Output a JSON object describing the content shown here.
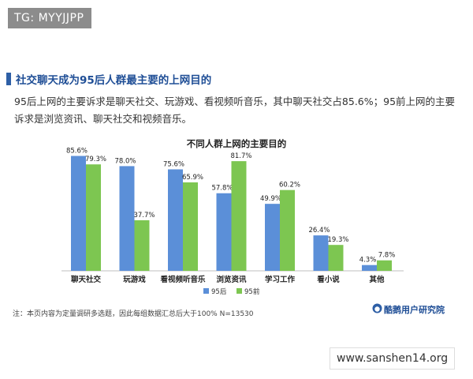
{
  "watermark_tag": "TG: MYYJJPP",
  "site_tag": "www.sanshen14.org",
  "headline": "社交聊天成为95后人群最主要的上网目的",
  "description": "95后上网的主要诉求是聊天社交、玩游戏、看视频听音乐，其中聊天社交占85.6%；95前上网的主要诉求是浏览资讯、聊天社交和视频音乐。",
  "note": "注：本页内容为定量调研多选题，因此每组数据汇总后大于100%  N=13530",
  "brand": "酷鹅用户研究院",
  "colors": {
    "series_95hou": "#5b8fd8",
    "series_95qian": "#7dc651",
    "title": "#1f4e96"
  },
  "chart_data": {
    "type": "bar",
    "title": "不同人群上网的主要目的",
    "categories": [
      "聊天社交",
      "玩游戏",
      "看视频听音乐",
      "浏览资讯",
      "学习工作",
      "看小说",
      "其他"
    ],
    "series": [
      {
        "name": "95后",
        "values": [
          85.6,
          78.0,
          75.6,
          57.8,
          49.9,
          26.4,
          4.3
        ],
        "labels": [
          "85.6%",
          "78.0%",
          "75.6%",
          "57.8%",
          "49.9%",
          "26.4%",
          "4.3%"
        ]
      },
      {
        "name": "95前",
        "values": [
          79.3,
          37.7,
          65.9,
          81.7,
          60.2,
          19.3,
          7.8
        ],
        "labels": [
          "79.3%",
          "37.7%",
          "65.9%",
          "81.7%",
          "60.2%",
          "19.3%",
          "7.8%"
        ]
      }
    ],
    "ylim": [
      0,
      100
    ],
    "legend": "bottom-center",
    "grid": false
  }
}
